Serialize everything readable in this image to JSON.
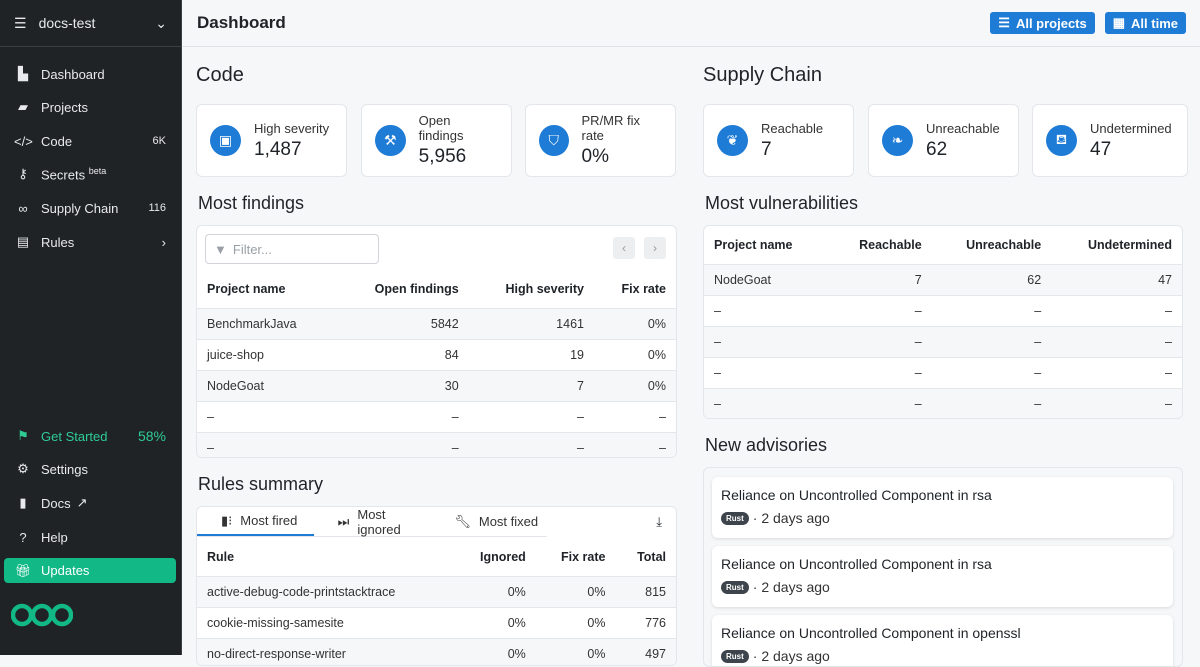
{
  "sidebar": {
    "org": "docs-test",
    "items": [
      {
        "label": "Dashboard",
        "icon": "chart-area-icon"
      },
      {
        "label": "Projects",
        "icon": "folder-open-icon"
      },
      {
        "label": "Code",
        "icon": "code-icon",
        "count": "6K"
      },
      {
        "label": "Secrets",
        "icon": "key-icon",
        "sup": "beta"
      },
      {
        "label": "Supply Chain",
        "icon": "link-icon",
        "count": "116"
      },
      {
        "label": "Rules",
        "icon": "file-search-icon"
      }
    ],
    "get_started": {
      "label": "Get Started",
      "percent": "58%"
    },
    "bottom": [
      {
        "label": "Settings"
      },
      {
        "label": "Docs"
      },
      {
        "label": "Help"
      },
      {
        "label": "Updates"
      }
    ]
  },
  "header": {
    "title": "Dashboard",
    "projects_btn": "All projects",
    "time_btn": "All time"
  },
  "colors": {
    "accent": "#1e7bd6",
    "green": "#12b886",
    "sidebar": "#1f2326"
  },
  "code": {
    "title": "Code",
    "cards": [
      {
        "label": "High severity",
        "value": "1,487"
      },
      {
        "label": "Open findings",
        "value": "5,956"
      },
      {
        "label": "PR/MR fix rate",
        "value": "0%"
      }
    ]
  },
  "supply": {
    "title": "Supply Chain",
    "cards": [
      {
        "label": "Reachable",
        "value": "7"
      },
      {
        "label": "Unreachable",
        "value": "62"
      },
      {
        "label": "Undetermined",
        "value": "47"
      }
    ]
  },
  "most_findings": {
    "title": "Most findings",
    "filter_placeholder": "Filter...",
    "columns": [
      "Project name",
      "Open findings",
      "High severity",
      "Fix rate"
    ],
    "rows": [
      [
        "BenchmarkJava",
        "5842",
        "1461",
        "0%"
      ],
      [
        "juice-shop",
        "84",
        "19",
        "0%"
      ],
      [
        "NodeGoat",
        "30",
        "7",
        "0%"
      ],
      [
        "–",
        "–",
        "–",
        "–"
      ],
      [
        "–",
        "–",
        "–",
        "–"
      ]
    ]
  },
  "most_vulns": {
    "title": "Most vulnerabilities",
    "columns": [
      "Project name",
      "Reachable",
      "Unreachable",
      "Undetermined"
    ],
    "rows": [
      [
        "NodeGoat",
        "7",
        "62",
        "47"
      ],
      [
        "–",
        "–",
        "–",
        "–"
      ],
      [
        "–",
        "–",
        "–",
        "–"
      ],
      [
        "–",
        "–",
        "–",
        "–"
      ],
      [
        "–",
        "–",
        "–",
        "–"
      ]
    ]
  },
  "rules": {
    "title": "Rules summary",
    "tabs": [
      "Most fired",
      "Most ignored",
      "Most fixed"
    ],
    "columns": [
      "Rule",
      "Ignored",
      "Fix rate",
      "Total"
    ],
    "rows": [
      [
        "active-debug-code-printstacktrace",
        "0%",
        "0%",
        "815"
      ],
      [
        "cookie-missing-samesite",
        "0%",
        "0%",
        "776"
      ],
      [
        "no-direct-response-writer",
        "0%",
        "0%",
        "497"
      ]
    ]
  },
  "advisories": {
    "title": "New advisories",
    "items": [
      {
        "title": "Reliance on Uncontrolled Component in rsa",
        "badge": "Rust",
        "time": "· 2 days ago"
      },
      {
        "title": "Reliance on Uncontrolled Component in rsa",
        "badge": "Rust",
        "time": "· 2 days ago"
      },
      {
        "title": "Reliance on Uncontrolled Component in openssl",
        "badge": "Rust",
        "time": "· 2 days ago"
      }
    ]
  }
}
